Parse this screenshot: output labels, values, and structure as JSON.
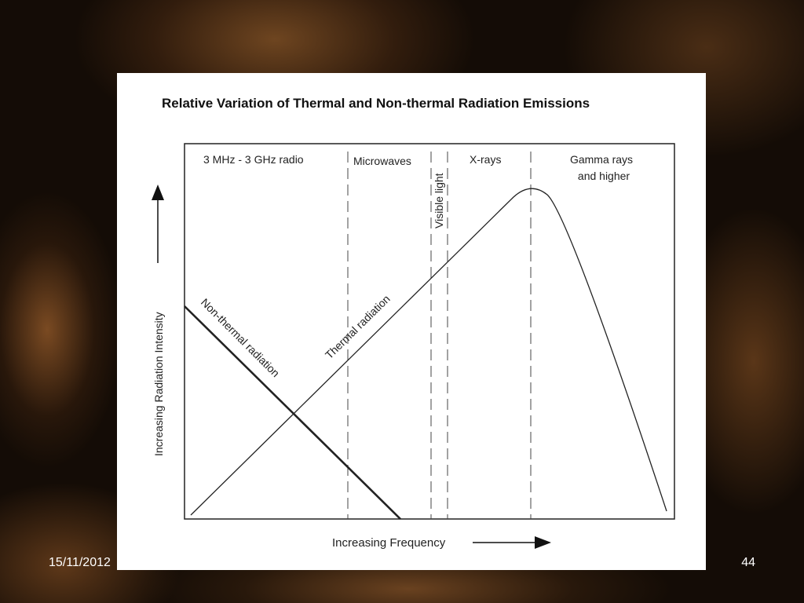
{
  "slide": {
    "date": "15/11/2012",
    "page_number": "44"
  },
  "diagram": {
    "title": "Relative Variation of Thermal and Non-thermal Radiation Emissions",
    "y_axis_label": "Increasing Radiation Intensity",
    "x_axis_label": "Increasing Frequency",
    "bands": {
      "radio": "3 MHz - 3 GHz radio",
      "microwaves": "Microwaves",
      "visible": "Visible light",
      "xrays": "X-rays",
      "gamma_line1": "Gamma rays",
      "gamma_line2": "and higher"
    },
    "curves": {
      "non_thermal": "Non-thermal radiation",
      "thermal": "Thermal radiation"
    }
  }
}
